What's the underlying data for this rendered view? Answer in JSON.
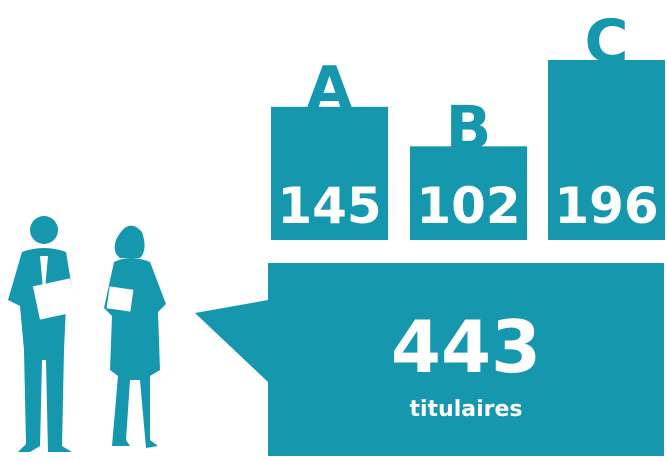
{
  "chart_data": {
    "type": "bar",
    "categories": [
      "A",
      "B",
      "C"
    ],
    "values": [
      145,
      102,
      196
    ],
    "color": "#1597ad",
    "total": 443,
    "total_label": "titulaires"
  }
}
